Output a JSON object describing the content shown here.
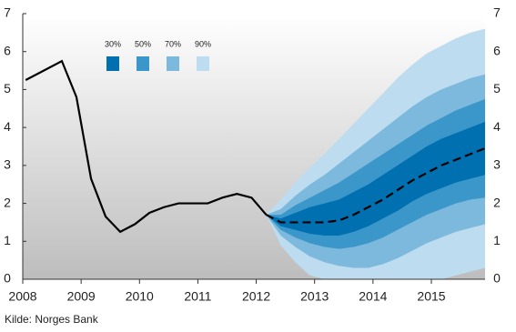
{
  "chart_data": {
    "type": "fan",
    "xlim": [
      2008,
      2015.92
    ],
    "xticks": [
      2008,
      2009,
      2010,
      2011,
      2012,
      2013,
      2014,
      2015
    ],
    "ylim": [
      0,
      7
    ],
    "yticks": [
      0,
      1,
      2,
      3,
      4,
      5,
      6,
      7
    ],
    "source": "Kilde: Norges Bank",
    "line_color": "#000000",
    "history": {
      "x": [
        2008.05,
        2008.3,
        2008.67,
        2008.92,
        2009.17,
        2009.42,
        2009.67,
        2009.92,
        2010.17,
        2010.42,
        2010.67,
        2010.92,
        2011.17,
        2011.42,
        2011.67,
        2011.92,
        2012.17
      ],
      "values": [
        5.25,
        5.45,
        5.75,
        4.8,
        2.65,
        1.65,
        1.25,
        1.45,
        1.75,
        1.9,
        2.0,
        2.0,
        2.0,
        2.15,
        2.25,
        2.15,
        1.7
      ]
    },
    "fan_x": [
      2012.17,
      2012.42,
      2012.67,
      2012.92,
      2013.17,
      2013.42,
      2013.67,
      2013.92,
      2014.17,
      2014.42,
      2014.67,
      2014.92,
      2015.17,
      2015.42,
      2015.67,
      2015.92
    ],
    "forecast": [
      1.7,
      1.5,
      1.5,
      1.5,
      1.5,
      1.55,
      1.7,
      1.9,
      2.1,
      2.35,
      2.6,
      2.8,
      3.0,
      3.15,
      3.3,
      3.45
    ],
    "fans": [
      {
        "name": "90%",
        "color": "#bddcef",
        "lower": [
          1.7,
          0.9,
          0.45,
          0.1,
          0,
          0,
          0,
          0,
          0,
          0,
          0,
          0,
          0,
          0.1,
          0.2,
          0.3
        ],
        "upper": [
          1.7,
          2.1,
          2.55,
          2.95,
          3.3,
          3.7,
          4.1,
          4.5,
          4.9,
          5.3,
          5.65,
          5.95,
          6.15,
          6.35,
          6.5,
          6.6
        ]
      },
      {
        "name": "70%",
        "color": "#7db9dd",
        "lower": [
          1.7,
          1.15,
          0.85,
          0.6,
          0.45,
          0.35,
          0.3,
          0.3,
          0.4,
          0.55,
          0.75,
          0.95,
          1.1,
          1.25,
          1.35,
          1.45
        ],
        "upper": [
          1.7,
          1.85,
          2.2,
          2.5,
          2.75,
          3.05,
          3.35,
          3.65,
          3.95,
          4.25,
          4.55,
          4.8,
          5.0,
          5.15,
          5.3,
          5.4
        ]
      },
      {
        "name": "50%",
        "color": "#3b97c9",
        "lower": [
          1.7,
          1.3,
          1.1,
          0.95,
          0.85,
          0.8,
          0.85,
          0.95,
          1.1,
          1.3,
          1.5,
          1.7,
          1.85,
          2.0,
          2.1,
          2.15
        ],
        "upper": [
          1.7,
          1.7,
          1.95,
          2.15,
          2.35,
          2.55,
          2.8,
          3.05,
          3.3,
          3.55,
          3.8,
          4.05,
          4.25,
          4.45,
          4.6,
          4.75
        ]
      },
      {
        "name": "30%",
        "color": "#0070b0",
        "lower": [
          1.7,
          1.4,
          1.3,
          1.2,
          1.15,
          1.15,
          1.25,
          1.4,
          1.6,
          1.8,
          2.05,
          2.25,
          2.4,
          2.55,
          2.65,
          2.75
        ],
        "upper": [
          1.7,
          1.6,
          1.75,
          1.9,
          2.0,
          2.1,
          2.3,
          2.5,
          2.75,
          3.0,
          3.25,
          3.5,
          3.7,
          3.85,
          4.0,
          4.15
        ]
      }
    ]
  }
}
